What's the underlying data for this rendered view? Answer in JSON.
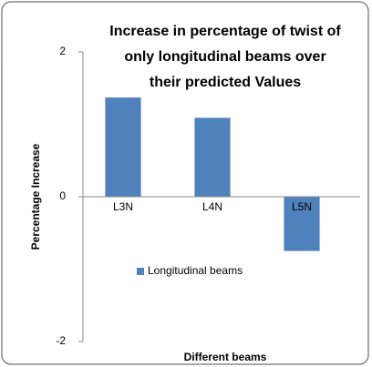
{
  "chart_data": {
    "type": "bar",
    "title": [
      "Increase in percentage of twist of",
      "only longitudinal   beams over",
      "their predicted Values"
    ],
    "x_label": "Different beams",
    "y_label": "Percentage Increase",
    "categories": [
      "L3N",
      "L4N",
      "L5N"
    ],
    "series": [
      {
        "name": "Longitudinal beams",
        "color": "#4f81bd",
        "values": [
          1.37,
          1.09,
          -0.75
        ]
      }
    ],
    "ylim": [
      -2,
      2
    ],
    "yticks": [
      -2,
      0,
      2
    ],
    "grid": false,
    "legend": "center"
  }
}
